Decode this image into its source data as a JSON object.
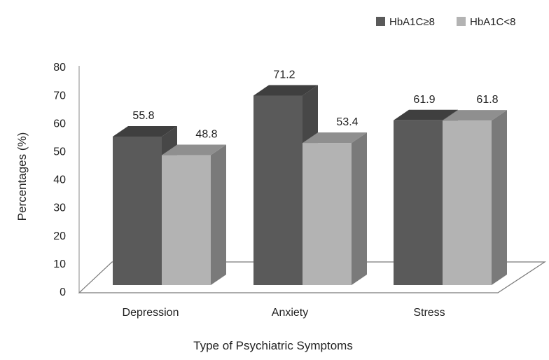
{
  "chart_data": {
    "type": "bar",
    "categories": [
      "Depression",
      "Anxiety",
      "Stress"
    ],
    "series": [
      {
        "name": "HbA1C≥8",
        "values": [
          55.8,
          71.2,
          61.9
        ]
      },
      {
        "name": "HbA1C<8",
        "values": [
          48.8,
          53.4,
          61.8
        ]
      }
    ],
    "xlabel": "Type of Psychiatric Symptoms",
    "ylabel": "Percentages  (%)",
    "ylim": [
      0,
      80
    ],
    "yticks": [
      0,
      10,
      20,
      30,
      40,
      50,
      60,
      70,
      80
    ],
    "grid": false,
    "legend_position": "top-right",
    "style": "3d-column"
  },
  "colors": {
    "series_1": {
      "front": "#5a5a5a",
      "top": "#3f3f3f",
      "side": "#474747"
    },
    "series_2": {
      "front": "#b3b3b3",
      "top": "#8f8f8f",
      "side": "#7a7a7a"
    },
    "floor": "#ffffff",
    "floor_stroke": "#7a7a7a",
    "axis": "#888888"
  }
}
